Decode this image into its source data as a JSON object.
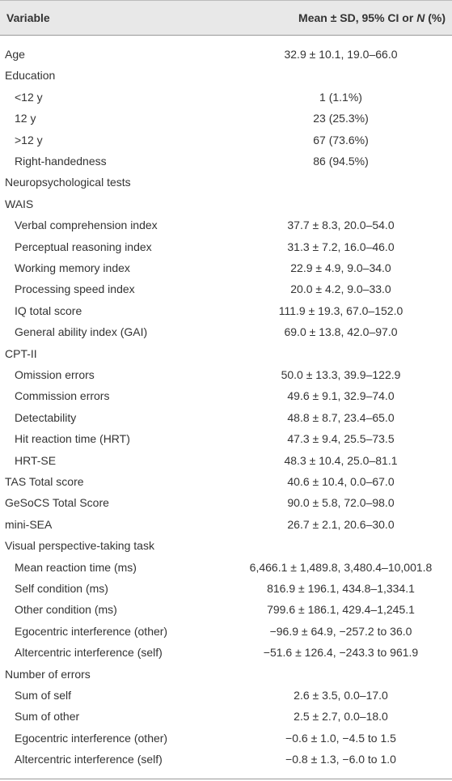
{
  "table": {
    "header": {
      "variable": "Variable",
      "value": [
        "Mean ± SD, 95% CI or ",
        "N",
        " (%)"
      ]
    },
    "rows": [
      {
        "label": "Age",
        "value": "32.9 ± 10.1, 19.0–66.0"
      },
      {
        "label": "Education",
        "items": [
          {
            "label": "<12 y",
            "value": "1 (1.1%)"
          },
          {
            "label": "12 y",
            "value": "23 (25.3%)"
          },
          {
            "label": ">12 y",
            "value": "67 (73.6%)"
          },
          {
            "label": "Right-handedness",
            "value": "86 (94.5%)"
          }
        ]
      },
      {
        "label": "Neuropsychological tests"
      },
      {
        "label": "WAIS",
        "items": [
          {
            "label": "Verbal comprehension index",
            "value": "37.7 ± 8.3, 20.0–54.0"
          },
          {
            "label": "Perceptual reasoning index",
            "value": "31.3 ± 7.2, 16.0–46.0"
          },
          {
            "label": "Working memory index",
            "value": "22.9 ± 4.9, 9.0–34.0"
          },
          {
            "label": "Processing speed index",
            "value": "20.0 ± 4.2, 9.0–33.0"
          },
          {
            "label": "IQ total score",
            "value": "111.9 ± 19.3, 67.0–152.0"
          },
          {
            "label": "General ability index (GAI)",
            "value": "69.0 ± 13.8, 42.0–97.0"
          }
        ]
      },
      {
        "label": "CPT-II",
        "items": [
          {
            "label": "Omission errors",
            "value": "50.0 ± 13.3, 39.9–122.9"
          },
          {
            "label": "Commission errors",
            "value": "49.6 ± 9.1, 32.9–74.0"
          },
          {
            "label": "Detectability",
            "value": "48.8 ± 8.7, 23.4–65.0"
          },
          {
            "label": "Hit reaction time (HRT)",
            "value": "47.3 ± 9.4, 25.5–73.5"
          },
          {
            "label": "HRT-SE",
            "value": "48.3 ± 10.4, 25.0–81.1"
          }
        ]
      },
      {
        "label": "TAS Total score",
        "value": "40.6 ± 10.4, 0.0–67.0"
      },
      {
        "label": "GeSoCS Total Score",
        "value": "90.0 ± 5.8, 72.0–98.0"
      },
      {
        "label": "mini-SEA",
        "value": "26.7 ± 2.1, 20.6–30.0"
      },
      {
        "label": "Visual perspective-taking task",
        "items": [
          {
            "label": "Mean reaction time (ms)",
            "value": "6,466.1 ± 1,489.8, 3,480.4–10,001.8"
          },
          {
            "label": "Self condition (ms)",
            "value": "816.9 ± 196.1, 434.8–1,334.1"
          },
          {
            "label": "Other condition (ms)",
            "value": "799.6 ± 186.1, 429.4–1,245.1"
          },
          {
            "label": "Egocentric interference (other)",
            "value": "−96.9 ± 64.9, −257.2 to 36.0"
          },
          {
            "label": "Altercentric interference (self)",
            "value": "−51.6 ± 126.4, −243.3 to 961.9"
          }
        ]
      },
      {
        "label": "Number of errors",
        "items": [
          {
            "label": "Sum of self",
            "value": "2.6 ± 3.5, 0.0–17.0"
          },
          {
            "label": "Sum of other",
            "value": "2.5 ± 2.7, 0.0–18.0"
          },
          {
            "label": "Egocentric interference (other)",
            "value": "−0.6 ± 1.0, −4.5 to 1.5"
          },
          {
            "label": "Altercentric interference (self)",
            "value": "−0.8 ± 1.3, −6.0 to 1.0"
          }
        ]
      }
    ]
  }
}
